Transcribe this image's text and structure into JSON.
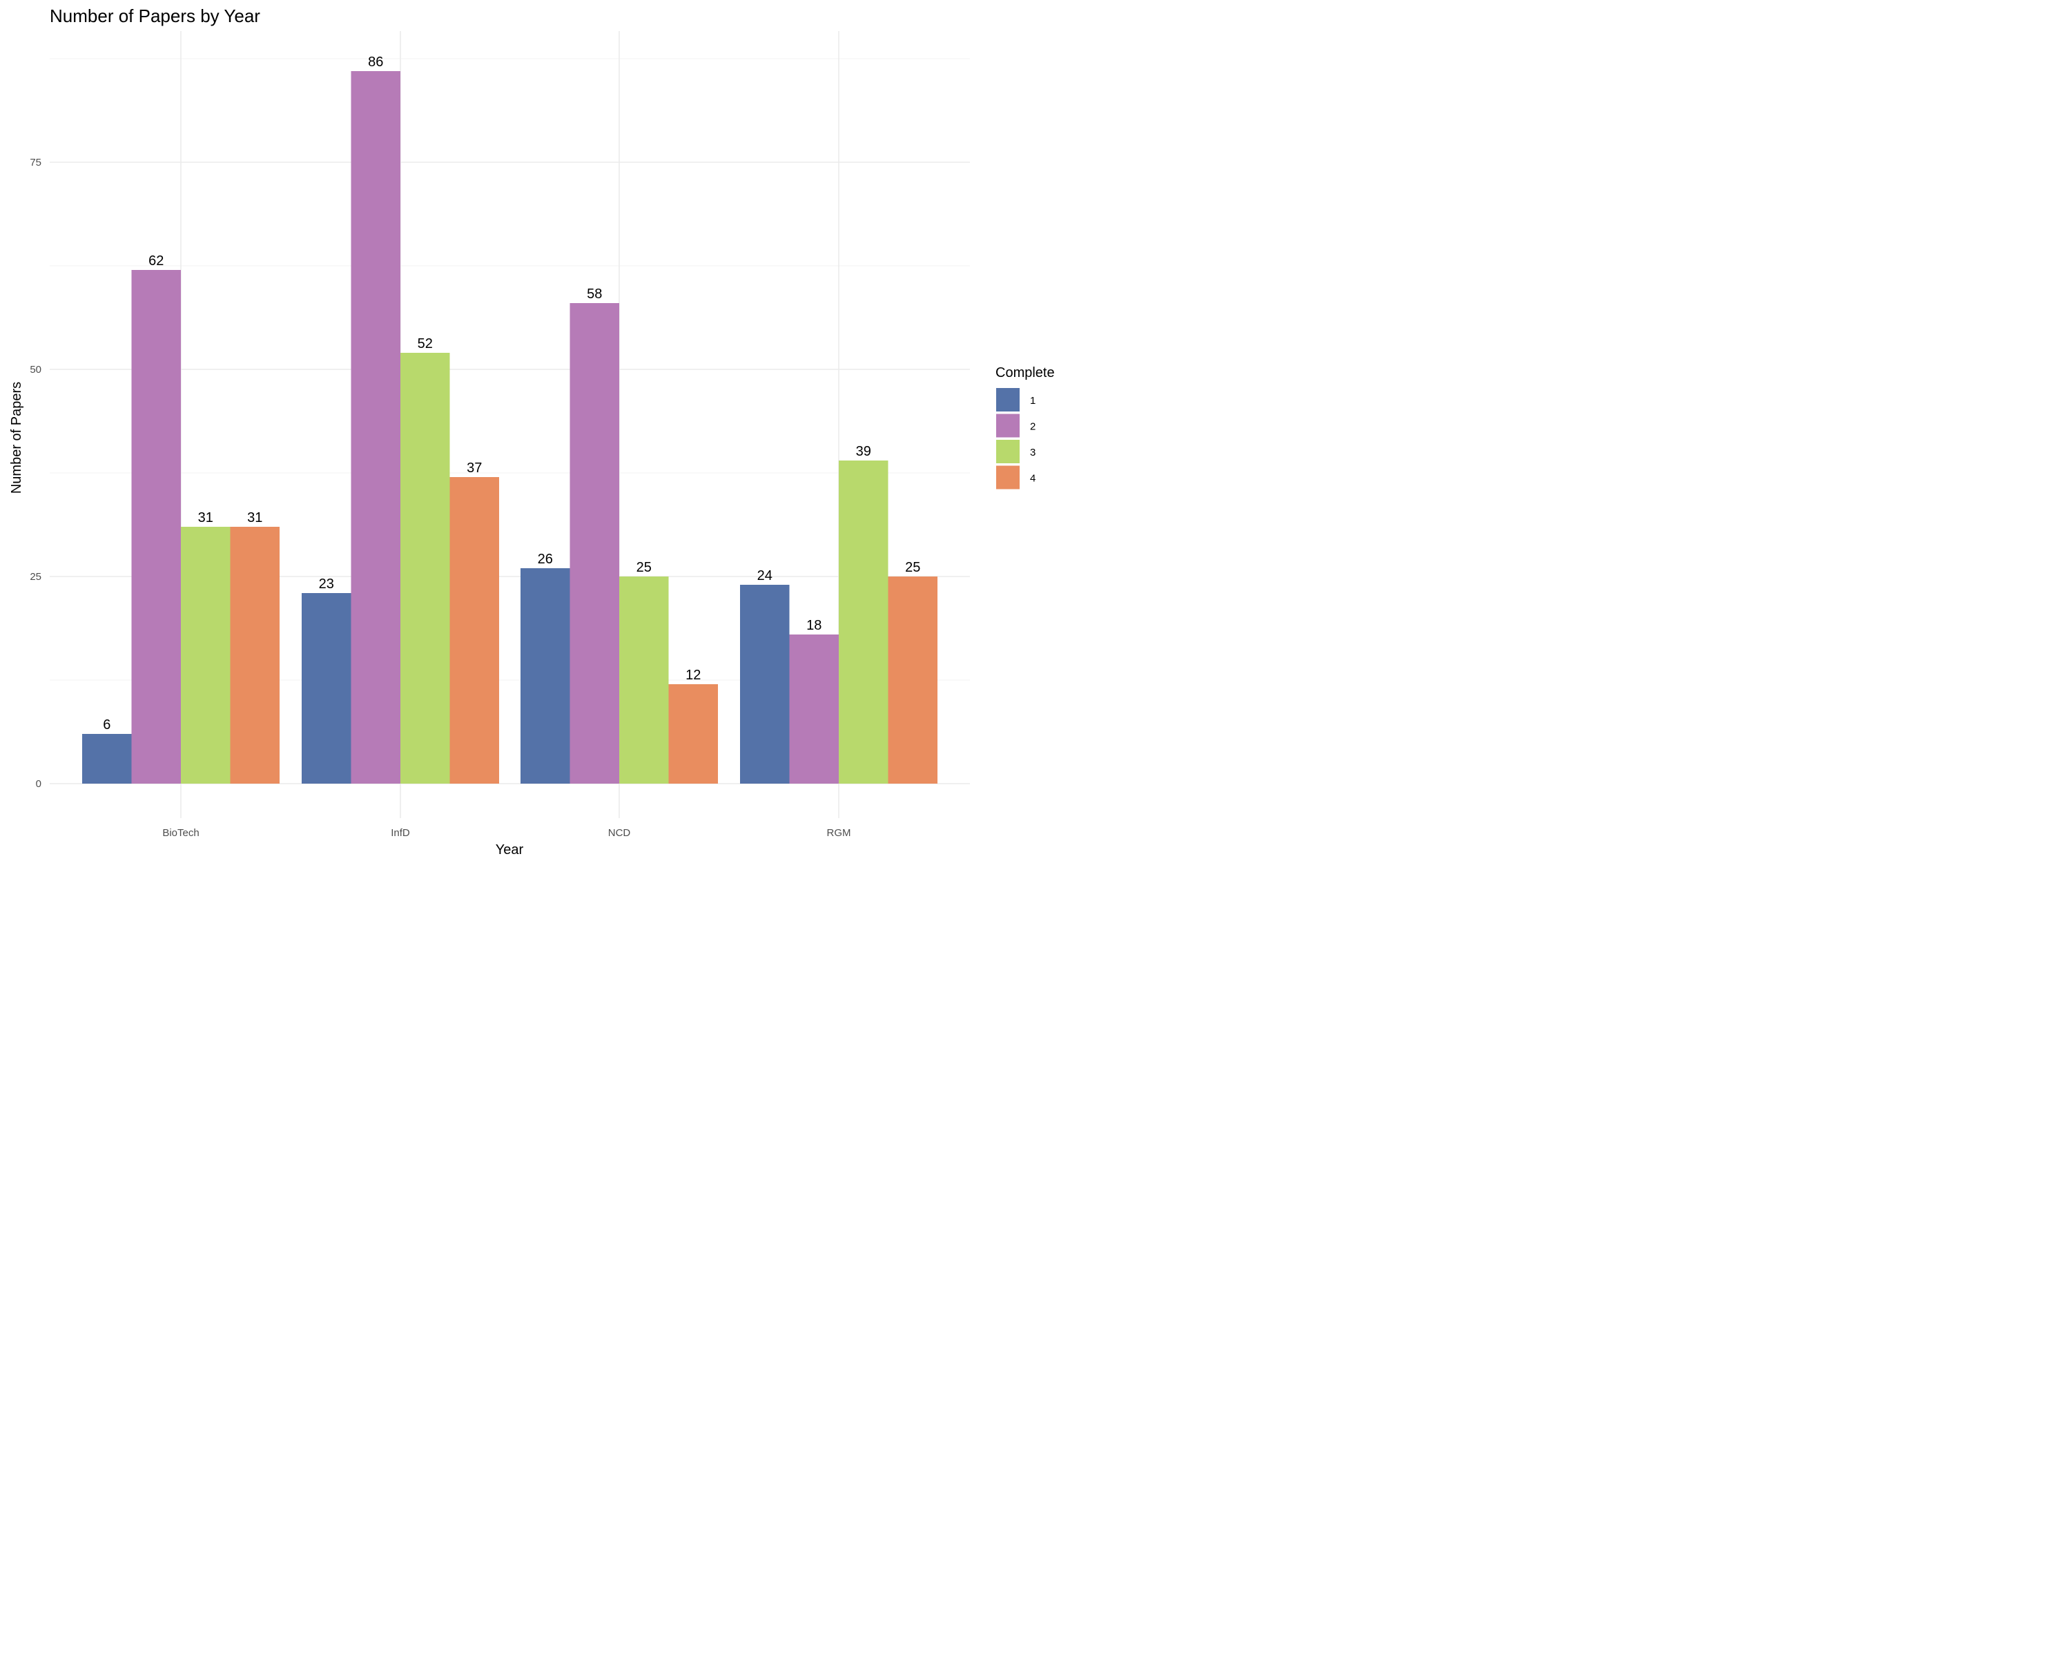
{
  "chart_data": {
    "type": "bar",
    "title": "Number of Papers by Year",
    "xlabel": "Year",
    "ylabel": "Number of Papers",
    "categories": [
      "BioTech",
      "InfD",
      "NCD",
      "RGM"
    ],
    "series": [
      {
        "name": "1",
        "color": "#5472a8",
        "values": [
          6,
          23,
          26,
          24
        ]
      },
      {
        "name": "2",
        "color": "#b67bb7",
        "values": [
          62,
          86,
          58,
          18
        ]
      },
      {
        "name": "3",
        "color": "#b8d96c",
        "values": [
          31,
          52,
          25,
          39
        ]
      },
      {
        "name": "4",
        "color": "#e98d5f",
        "values": [
          31,
          37,
          12,
          25
        ]
      }
    ],
    "yticks": [
      "0",
      "25",
      "50",
      "75"
    ],
    "ylim": [
      0,
      87
    ],
    "grid": true,
    "legend": {
      "title": "Complete",
      "position": "right"
    }
  }
}
